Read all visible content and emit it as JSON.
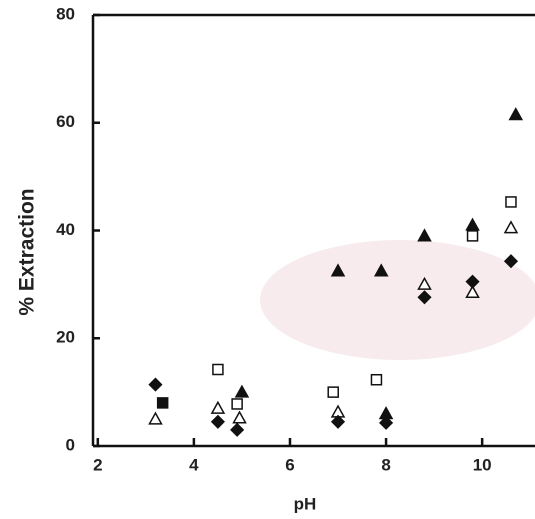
{
  "chart_data": {
    "type": "scatter",
    "x_label": "pH",
    "y_label": "% Extraction",
    "xlim": [
      1.9,
      11.1
    ],
    "ylim": [
      0,
      80
    ],
    "xticks": [
      2,
      4,
      6,
      8,
      10
    ],
    "yticks": [
      0,
      20,
      40,
      60,
      80
    ],
    "series": [
      {
        "marker": "triangle",
        "filled": true,
        "color": "#111",
        "x": [
          5.0,
          7.0,
          7.9,
          8.0,
          8.8,
          9.8,
          10.7
        ],
        "values": [
          10,
          32.5,
          32.5,
          6,
          39,
          41,
          61.5
        ]
      },
      {
        "marker": "square",
        "filled": false,
        "color": "#111",
        "x": [
          4.5,
          4.9,
          6.9,
          7.8,
          9.8,
          10.6
        ],
        "values": [
          14.2,
          7.8,
          10,
          12.3,
          39,
          45.3
        ]
      },
      {
        "marker": "triangle",
        "filled": false,
        "color": "#111",
        "x": [
          3.2,
          4.5,
          4.95,
          7.0,
          8.8,
          9.8,
          10.6
        ],
        "values": [
          5,
          7,
          5.2,
          6.3,
          30,
          28.5,
          40.5
        ]
      },
      {
        "marker": "diamond",
        "filled": true,
        "color": "#111",
        "x": [
          3.2,
          4.5,
          4.9,
          7.0,
          8.0,
          8.8,
          9.8,
          10.6
        ],
        "values": [
          11.4,
          4.5,
          3,
          4.5,
          4.3,
          27.6,
          30.5,
          34.3
        ]
      },
      {
        "marker": "square",
        "filled": true,
        "color": "#111",
        "x": [
          3.35
        ],
        "values": [
          8
        ]
      }
    ]
  }
}
